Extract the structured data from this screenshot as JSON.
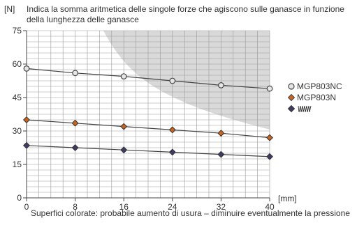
{
  "chart_data": {
    "type": "line",
    "unit_label": "[N]",
    "title": "Indica la somma aritmetica delle singole forze che agiscono sulle ganasce in funzione della lunghezza delle ganasce",
    "x": [
      0,
      8,
      16,
      24,
      32,
      40
    ],
    "x_ticks": [
      "0",
      "8",
      "16",
      "24",
      "32",
      "40"
    ],
    "y_ticks": [
      "0",
      "15",
      "30",
      "45",
      "60",
      "75"
    ],
    "xlabel": "[mm]",
    "ylabel": "[N]",
    "xlim": [
      0,
      40
    ],
    "ylim": [
      0,
      75
    ],
    "grid": true,
    "legend_position": "right",
    "series": [
      {
        "name": "MGP803NC",
        "marker": "circle",
        "color": "#e6e6e6",
        "values": [
          58,
          56,
          54.5,
          52.5,
          50.5,
          49
        ]
      },
      {
        "name": "MGP803N",
        "marker": "diamond",
        "color": "#c8641e",
        "values": [
          35,
          33.5,
          32,
          30.5,
          29,
          27
        ]
      },
      {
        "name": "",
        "marker": "diamond",
        "color": "#3c3c64",
        "values": [
          23.5,
          22.5,
          21.5,
          20.5,
          19.5,
          18.5
        ]
      }
    ],
    "shaded_region_label": "Superfici colorate: probabile aumento di usura – diminuire eventualmente la pressione",
    "shade_color": "#d9d9d9"
  }
}
